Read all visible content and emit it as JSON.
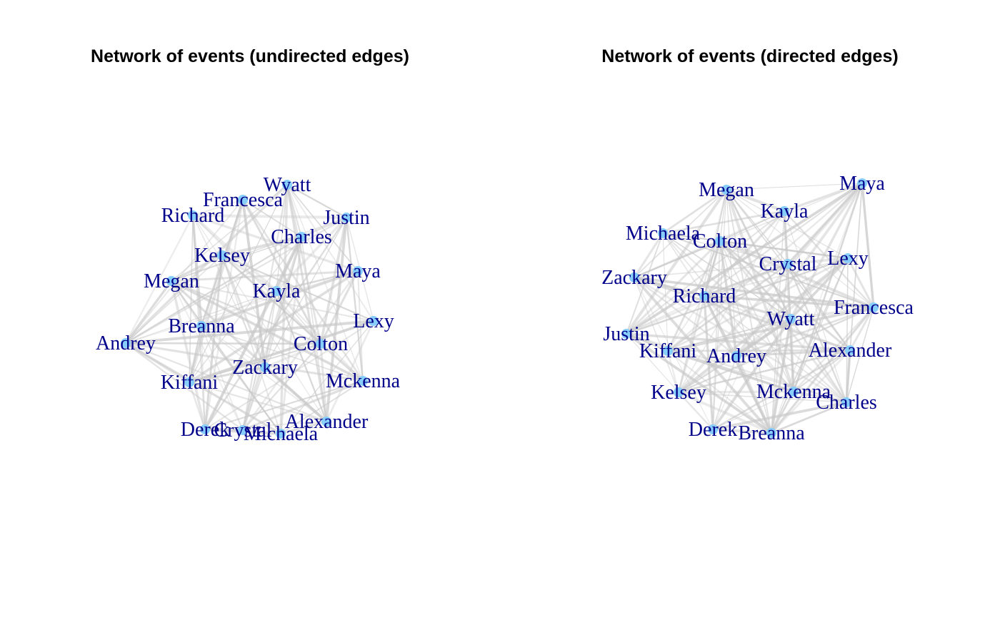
{
  "panels": [
    {
      "title": "Network of events (undirected edges)",
      "nodes": [
        "Wyatt",
        "Francesca",
        "Richard",
        "Justin",
        "Charles",
        "Kelsey",
        "Maya",
        "Megan",
        "Kayla",
        "Lexy",
        "Breanna",
        "Andrey",
        "Colton",
        "Zackary",
        "Mckenna",
        "Kiffani",
        "Alexander",
        "Derek",
        "Crystal",
        "Michaela"
      ]
    },
    {
      "title": "Network of events (directed edges)",
      "nodes": [
        "Megan",
        "Maya",
        "Kayla",
        "Michaela",
        "Colton",
        "Crystal",
        "Lexy",
        "Zackary",
        "Richard",
        "Francesca",
        "Wyatt",
        "Justin",
        "Kiffani",
        "Andrey",
        "Alexander",
        "Kelsey",
        "Mckenna",
        "Charles",
        "Derek",
        "Breanna"
      ]
    }
  ],
  "colors": {
    "edge": "#c8c8c8",
    "node": "#87cefa",
    "label": "#00008b",
    "title": "#000000"
  }
}
